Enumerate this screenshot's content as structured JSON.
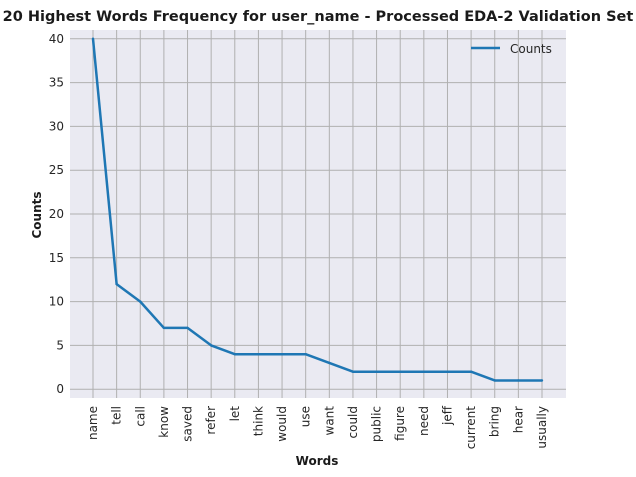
{
  "chart_data": {
    "type": "line",
    "title": "20 Highest Words Frequency for user_name - Processed EDA-2 Validation Set",
    "xlabel": "Words",
    "ylabel": "Counts",
    "categories": [
      "name",
      "tell",
      "call",
      "know",
      "saved",
      "refer",
      "let",
      "think",
      "would",
      "use",
      "want",
      "could",
      "public",
      "figure",
      "need",
      "jeff",
      "current",
      "bring",
      "hear",
      "usually"
    ],
    "series": [
      {
        "name": "Counts",
        "values": [
          40,
          12,
          10,
          7,
          7,
          5,
          4,
          4,
          4,
          4,
          3,
          2,
          2,
          2,
          2,
          2,
          2,
          1,
          1,
          1
        ]
      }
    ],
    "yticks": [
      0,
      5,
      10,
      15,
      20,
      25,
      30,
      35,
      40
    ],
    "ylim": [
      -1,
      41
    ],
    "grid": true,
    "legend": "top-right",
    "colors": {
      "line": "#1f77b4",
      "plot_bg": "#eaeaf2",
      "grid": "#b0b0b0"
    }
  }
}
